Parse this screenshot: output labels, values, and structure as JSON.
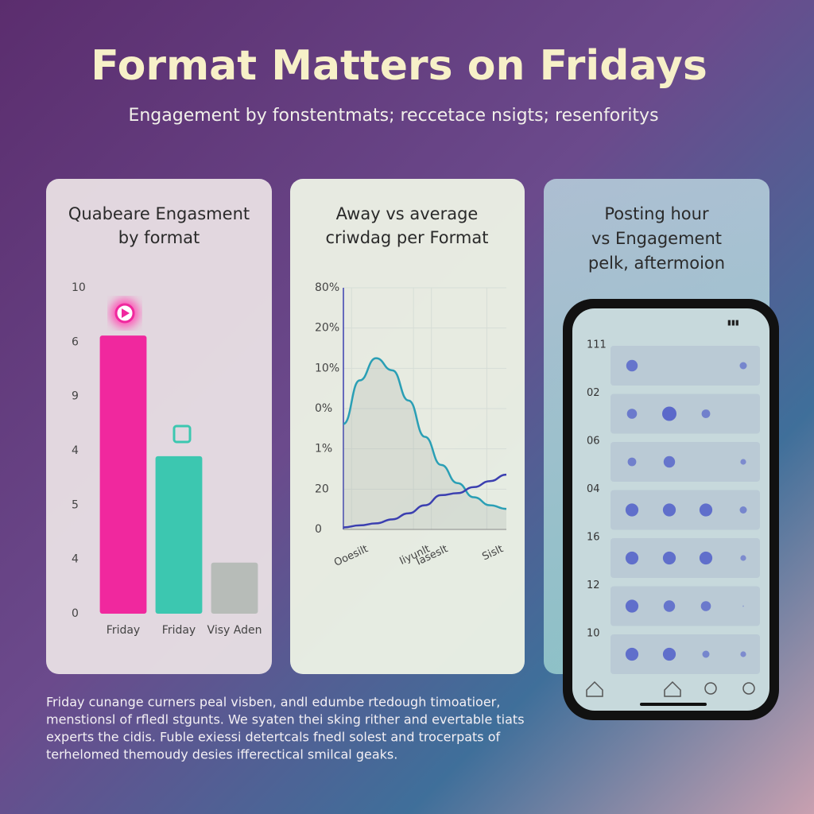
{
  "title": "Format Matters on Fridays",
  "subtitle": "Engagement by fonstentmats; reccetace nsigts; resenforitys",
  "footer": [
    "Friday cunange curners peal visben, andl edumbe rtedough timoatioer,",
    "menstionsl of rfledl stgunts. We syaten thei sking rither and evertable tiats",
    "experts the cidis. Fuble exiessi detertcals fnedl solest and trocerpats of",
    "terhelomed themoudy desies ifferectical smilcal geaks."
  ],
  "chart_data": [
    {
      "type": "bar",
      "title": [
        "Quabeare Engasment",
        "by format"
      ],
      "categories": [
        "Friday",
        "Friday",
        "Visy Aden"
      ],
      "values": [
        5.12,
        2.9,
        0.94
      ],
      "colors": [
        "#f0289e",
        "#3cc7b0",
        "#b7bcb8"
      ],
      "ylim": [
        0,
        6
      ],
      "yticks": [
        0,
        {
          "value": 1,
          "label": "4"
        },
        {
          "value": 2,
          "label": "5"
        },
        {
          "value": 3,
          "label": "4"
        },
        {
          "value": 4,
          "label": "9"
        },
        {
          "value": 5,
          "label": "6"
        },
        {
          "value": 6,
          "label": "10"
        }
      ]
    },
    {
      "type": "line",
      "title": [
        "Away vs average",
        "criwdag per Format"
      ],
      "x": [
        0,
        1,
        2,
        3,
        4,
        5,
        6,
        7,
        8,
        9,
        10
      ],
      "xlim": [
        0,
        10
      ],
      "xticks": [
        {
          "value": 0.5,
          "label": "Ooesilt"
        },
        {
          "value": 4.3,
          "label": "Iiyunlt"
        },
        {
          "value": 5.4,
          "label": "Iaseslt"
        },
        {
          "value": 8.8,
          "label": "Sislt"
        }
      ],
      "series": [
        {
          "color": "#2a9fb5",
          "values": [
            2.62,
            3.7,
            4.25,
            3.95,
            3.2,
            2.3,
            1.6,
            1.15,
            0.8,
            0.6,
            0.51
          ]
        },
        {
          "color": "#3b3fb0",
          "values": [
            0.05,
            0.1,
            0.15,
            0.25,
            0.4,
            0.6,
            0.85,
            0.9,
            1.05,
            1.2,
            1.36
          ]
        }
      ],
      "ylim": [
        0,
        6
      ],
      "yticks": [
        0,
        {
          "value": 1,
          "label": "20"
        },
        {
          "value": 2,
          "label": "1%"
        },
        {
          "value": 3,
          "label": "0%"
        },
        {
          "value": 4,
          "label": "10%"
        },
        {
          "value": 5,
          "label": "20%"
        },
        {
          "value": 6,
          "label": "80%"
        }
      ],
      "grid": true
    },
    {
      "type": "heatmap",
      "title": [
        "Posting hour",
        "vs Engagement",
        "pelk, aftermoion"
      ],
      "rows": [
        "111",
        "02",
        "06",
        "04",
        "16",
        "12",
        "10"
      ],
      "color": "#4a58c8",
      "values": [
        [
          0.8,
          0,
          0,
          0.5
        ],
        [
          0.7,
          1,
          0.6,
          0
        ],
        [
          0.6,
          0.8,
          0,
          0.4
        ],
        [
          0.9,
          0.9,
          0.9,
          0.5
        ],
        [
          0.9,
          0.9,
          0.9,
          0.4
        ],
        [
          0.9,
          0.8,
          0.7,
          0.1
        ],
        [
          0.9,
          0.9,
          0.5,
          0.4
        ]
      ]
    }
  ]
}
